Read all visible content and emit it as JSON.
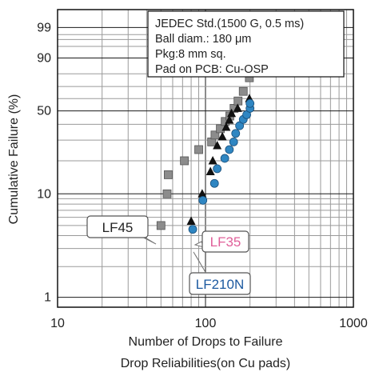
{
  "chart_data": {
    "type": "scatter",
    "x_scale": "log",
    "y_scale": "weibull-probability",
    "xlim": [
      10,
      1000
    ],
    "x_ticks": [
      "10",
      "100",
      "1000"
    ],
    "y_ticks": [
      {
        "value": 1,
        "label": "1"
      },
      {
        "value": 10,
        "label": "10"
      },
      {
        "value": 50,
        "label": "50"
      },
      {
        "value": 90,
        "label": "90"
      },
      {
        "value": 99,
        "label": "99"
      }
    ],
    "xlabel": "Number of Drops to Failure",
    "ylabel": "Cumulative Failure (%)",
    "caption": "Drop Reliabilities(on Cu pads)",
    "info_box": [
      "JEDEC Std.(1500 G, 0.5 ms)",
      "Ball diam.: 180 μm",
      "Pkg:8 mm sq.",
      "Pad on PCB: Cu-OSP"
    ],
    "series": [
      {
        "name": "LF45",
        "marker": "square",
        "color": "#8c8c8c",
        "label_color": "#222222",
        "points": [
          [
            50,
            5.0
          ],
          [
            55,
            10.0
          ],
          [
            56,
            15.0
          ],
          [
            72,
            20.0
          ],
          [
            90,
            25.0
          ],
          [
            110,
            29.0
          ],
          [
            116,
            33.0
          ],
          [
            126,
            37.0
          ],
          [
            136,
            42.0
          ],
          [
            146,
            46.0
          ],
          [
            156,
            52.0
          ],
          [
            166,
            58.0
          ],
          [
            180,
            66.0
          ],
          [
            198,
            77.0
          ]
        ]
      },
      {
        "name": "LF35",
        "marker": "triangle",
        "color": "#111111",
        "label_color": "#e0609a",
        "points": [
          [
            80,
            5.5
          ],
          [
            95,
            10.0
          ],
          [
            108,
            16.0
          ],
          [
            112,
            20.0
          ],
          [
            120,
            27.0
          ],
          [
            130,
            32.0
          ],
          [
            138,
            38.0
          ],
          [
            145,
            43.0
          ],
          [
            150,
            48.0
          ],
          [
            165,
            52.0
          ],
          [
            198,
            60.0
          ]
        ]
      },
      {
        "name": "LF210N",
        "marker": "circle",
        "color": "#2f86c2",
        "label_color": "#1d5aa0",
        "points": [
          [
            82,
            4.6
          ],
          [
            96,
            8.7
          ],
          [
            115,
            12.5
          ],
          [
            120,
            17.0
          ],
          [
            135,
            21.0
          ],
          [
            145,
            25.0
          ],
          [
            155,
            29.0
          ],
          [
            160,
            34.0
          ],
          [
            170,
            39.0
          ],
          [
            180,
            43.5
          ],
          [
            190,
            47.0
          ],
          [
            200,
            52.0
          ],
          [
            200,
            56.0
          ]
        ]
      }
    ]
  }
}
